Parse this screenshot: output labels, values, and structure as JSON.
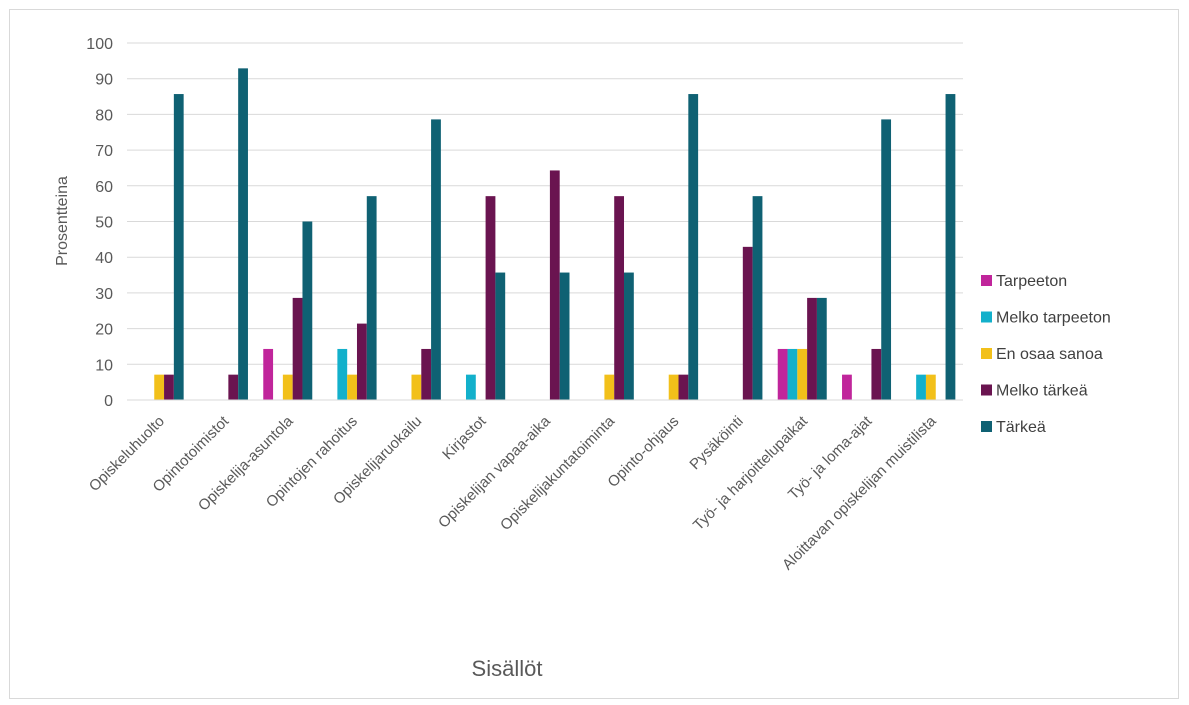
{
  "chart_data": {
    "type": "bar",
    "xlabel": "Sisällöt",
    "ylabel": "Prosentteina",
    "ylim": [
      0,
      100
    ],
    "yticks": [
      "0",
      "10",
      "20",
      "30",
      "40",
      "50",
      "60",
      "70",
      "80",
      "90",
      "100"
    ],
    "grid": true,
    "legend_position": "right",
    "categories": [
      "Opiskeluhuolto",
      "Opintotoimistot",
      "Opiskelija-asuntola",
      "Opintojen rahoitus",
      "Opiskelijaruokailu",
      "Kirjastot",
      "Opiskelijan vapaa-aika",
      "Opiskelijakuntatoiminta",
      "Opinto-ohjaus",
      "Pysäköinti",
      "Työ- ja harjoittelupaikat",
      "Työ- ja loma-ajat",
      "Aloittavan opiskelijan muistilista"
    ],
    "series": [
      {
        "name": "Tarpeeton",
        "color": "#c0259b",
        "values": [
          0,
          0,
          14.3,
          0,
          0,
          0,
          0,
          0,
          0,
          0,
          14.3,
          7.1,
          0
        ]
      },
      {
        "name": "Melko tarpeeton",
        "color": "#13b0cb",
        "values": [
          0,
          0,
          0,
          14.3,
          0,
          7.1,
          0,
          0,
          0,
          0,
          14.3,
          0,
          7.1
        ]
      },
      {
        "name": "En osaa sanoa",
        "color": "#f2c01a",
        "values": [
          7.1,
          0,
          7.1,
          7.1,
          7.1,
          0,
          0,
          7.1,
          7.1,
          0,
          14.3,
          0,
          7.1
        ]
      },
      {
        "name": "Melko tärkeä",
        "color": "#6a1450",
        "values": [
          7.1,
          7.1,
          28.6,
          21.4,
          14.3,
          57.1,
          64.3,
          57.1,
          7.1,
          42.9,
          28.6,
          14.3,
          0
        ]
      },
      {
        "name": "Tärkeä",
        "color": "#0f6173",
        "values": [
          85.7,
          92.9,
          50,
          57.1,
          78.6,
          35.7,
          35.7,
          35.7,
          85.7,
          57.1,
          28.6,
          78.6,
          85.7
        ]
      }
    ]
  }
}
